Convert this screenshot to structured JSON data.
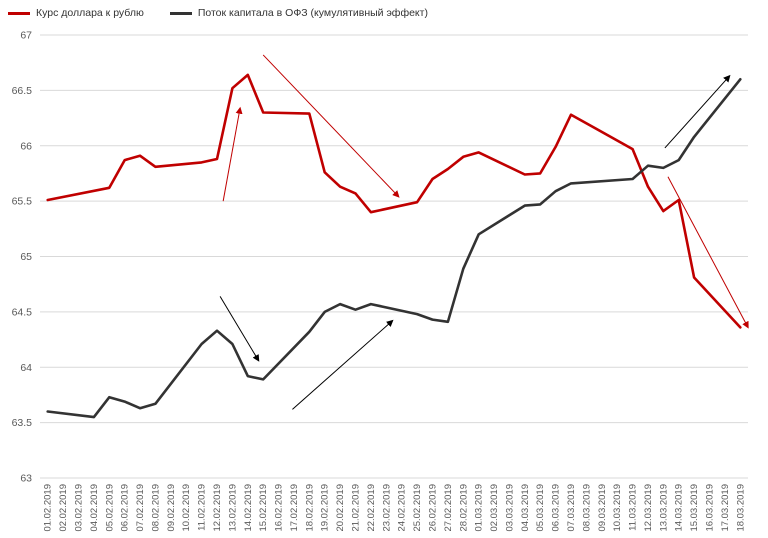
{
  "chart_data": {
    "type": "line",
    "title": "",
    "xlabel": "",
    "ylabel": "",
    "ylim": [
      63,
      67
    ],
    "yticks": [
      "63",
      "63.5",
      "64",
      "64.5",
      "65",
      "65.5",
      "66",
      "66.5",
      "67"
    ],
    "grid": true,
    "legend_position": "top-left",
    "x": [
      "01.02.2019",
      "02.02.2019",
      "03.02.2019",
      "04.02.2019",
      "05.02.2019",
      "06.02.2019",
      "07.02.2019",
      "08.02.2019",
      "09.02.2019",
      "10.02.2019",
      "11.02.2019",
      "12.02.2019",
      "13.02.2019",
      "14.02.2019",
      "15.02.2019",
      "16.02.2019",
      "17.02.2019",
      "18.02.2019",
      "19.02.2019",
      "20.02.2019",
      "21.02.2019",
      "22.02.2019",
      "23.02.2019",
      "24.02.2019",
      "25.02.2019",
      "26.02.2019",
      "27.02.2019",
      "28.02.2019",
      "01.03.2019",
      "02.03.2019",
      "03.03.2019",
      "04.03.2019",
      "05.03.2019",
      "06.03.2019",
      "07.03.2019",
      "08.03.2019",
      "09.03.2019",
      "10.03.2019",
      "11.03.2019",
      "12.03.2019",
      "13.03.2019",
      "14.03.2019",
      "15.03.2019",
      "16.03.2019",
      "17.03.2019",
      "18.03.2019"
    ],
    "series": [
      {
        "name": "Курс доллара к рублю",
        "color": "#c00000",
        "points": [
          [
            0,
            65.51
          ],
          [
            4,
            65.62
          ],
          [
            5,
            65.87
          ],
          [
            6,
            65.91
          ],
          [
            7,
            65.81
          ],
          [
            10,
            65.85
          ],
          [
            11,
            65.88
          ],
          [
            12,
            66.52
          ],
          [
            13,
            66.64
          ],
          [
            14,
            66.3
          ],
          [
            17,
            66.29
          ],
          [
            18,
            65.76
          ],
          [
            19,
            65.63
          ],
          [
            20,
            65.57
          ],
          [
            21,
            65.4
          ],
          [
            24,
            65.49
          ],
          [
            25,
            65.7
          ],
          [
            26,
            65.79
          ],
          [
            27,
            65.9
          ],
          [
            28,
            65.94
          ],
          [
            31,
            65.74
          ],
          [
            32,
            65.75
          ],
          [
            33,
            65.99
          ],
          [
            34,
            66.28
          ],
          [
            38,
            65.97
          ],
          [
            39,
            65.63
          ],
          [
            40,
            65.41
          ],
          [
            41,
            65.51
          ],
          [
            42,
            64.81
          ],
          [
            45,
            64.36
          ]
        ]
      },
      {
        "name": "Поток капитала в ОФЗ (кумулятивный эффект)",
        "color": "#333333",
        "points": [
          [
            0,
            63.6
          ],
          [
            3,
            63.55
          ],
          [
            4,
            63.73
          ],
          [
            5,
            63.69
          ],
          [
            6,
            63.63
          ],
          [
            7,
            63.67
          ],
          [
            10,
            64.21
          ],
          [
            11,
            64.33
          ],
          [
            12,
            64.21
          ],
          [
            13,
            63.92
          ],
          [
            14,
            63.89
          ],
          [
            17,
            64.32
          ],
          [
            18,
            64.5
          ],
          [
            19,
            64.57
          ],
          [
            20,
            64.52
          ],
          [
            21,
            64.57
          ],
          [
            24,
            64.48
          ],
          [
            25,
            64.43
          ],
          [
            26,
            64.41
          ],
          [
            27,
            64.89
          ],
          [
            28,
            65.2
          ],
          [
            31,
            65.46
          ],
          [
            32,
            65.47
          ],
          [
            33,
            65.59
          ],
          [
            34,
            65.66
          ],
          [
            38,
            65.7
          ],
          [
            39,
            65.82
          ],
          [
            40,
            65.8
          ],
          [
            41,
            65.87
          ],
          [
            42,
            66.08
          ],
          [
            45,
            66.6
          ]
        ]
      }
    ],
    "annotations": [
      {
        "kind": "arrow",
        "color": "#c00000",
        "from": [
          11.4,
          65.5
        ],
        "to": [
          12.5,
          66.34
        ]
      },
      {
        "kind": "arrow",
        "color": "#c00000",
        "from": [
          14.0,
          66.82
        ],
        "to": [
          22.8,
          65.54
        ]
      },
      {
        "kind": "arrow",
        "color": "#c00000",
        "from": [
          40.3,
          65.72
        ],
        "to": [
          45.5,
          64.36
        ]
      },
      {
        "kind": "arrow",
        "color": "#000000",
        "from": [
          11.2,
          64.64
        ],
        "to": [
          13.7,
          64.06
        ]
      },
      {
        "kind": "arrow",
        "color": "#000000",
        "from": [
          15.9,
          63.62
        ],
        "to": [
          22.4,
          64.42
        ]
      },
      {
        "kind": "arrow",
        "color": "#000000",
        "from": [
          40.1,
          65.98
        ],
        "to": [
          44.3,
          66.63
        ]
      }
    ]
  }
}
